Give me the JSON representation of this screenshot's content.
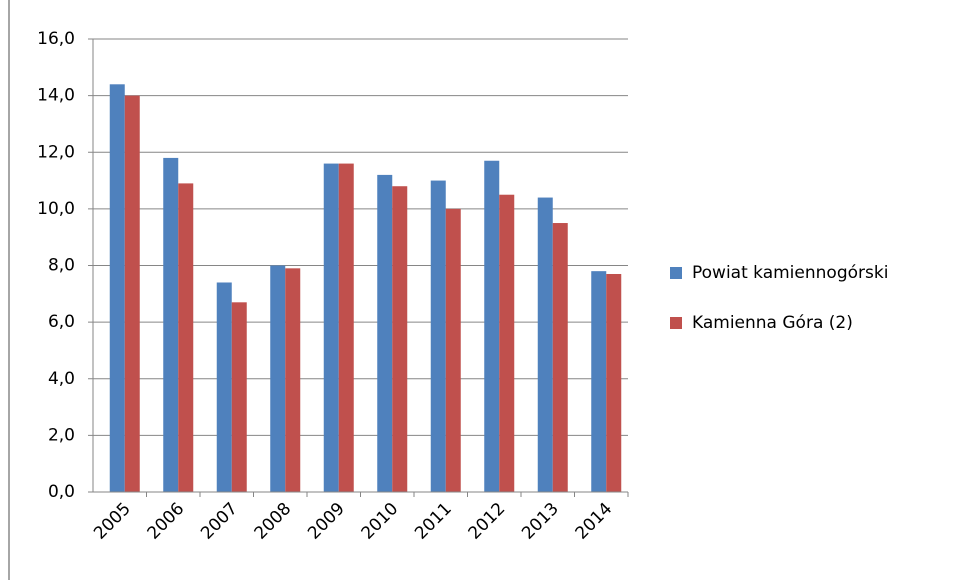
{
  "chart_data": {
    "type": "bar",
    "categories": [
      "2005",
      "2006",
      "2007",
      "2008",
      "2009",
      "2010",
      "2011",
      "2012",
      "2013",
      "2014"
    ],
    "series": [
      {
        "name": "Powiat kamiennogórski",
        "color": "#4f81bd",
        "values": [
          14.4,
          11.8,
          7.4,
          8.0,
          11.6,
          11.2,
          11.0,
          11.7,
          10.4,
          7.8
        ]
      },
      {
        "name": "Kamienna Góra (2)",
        "color": "#c0504d",
        "values": [
          14.0,
          10.9,
          6.7,
          7.9,
          11.6,
          10.8,
          10.0,
          10.5,
          9.5,
          7.7
        ]
      }
    ],
    "ylim": [
      0,
      16
    ],
    "yticks": [
      {
        "value": 0,
        "label": "0,0"
      },
      {
        "value": 2,
        "label": "2,0"
      },
      {
        "value": 4,
        "label": "4,0"
      },
      {
        "value": 6,
        "label": "6,0"
      },
      {
        "value": 8,
        "label": "8,0"
      },
      {
        "value": 10,
        "label": "10,0"
      },
      {
        "value": 12,
        "label": "12,0"
      },
      {
        "value": 14,
        "label": "14,0"
      },
      {
        "value": 16,
        "label": "16,0"
      }
    ],
    "grid": true,
    "legend": "right"
  }
}
